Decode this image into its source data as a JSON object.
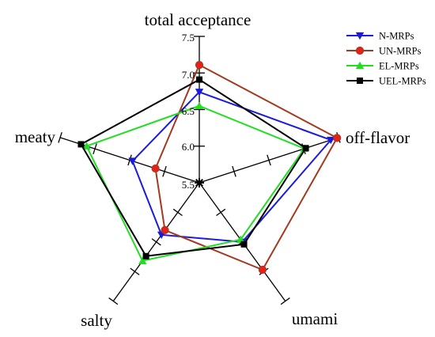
{
  "chart_data": {
    "type": "radar",
    "axes": [
      "total acceptance",
      "off-flavor",
      "umami",
      "salty",
      "meaty"
    ],
    "rlim": [
      5.5,
      7.5
    ],
    "ticks": [
      "5.5",
      "6.0",
      "6.5",
      "7.0",
      "7.5"
    ],
    "tick_values": [
      5.5,
      6.0,
      6.5,
      7.0,
      7.5
    ],
    "legend_position": "top-right",
    "series": [
      {
        "name": "N-MRPs",
        "color": "#1a1adf",
        "marker": "triangle-down",
        "values": [
          6.74,
          7.39,
          6.5,
          6.38,
          6.46
        ]
      },
      {
        "name": "UN-MRPs",
        "color": "#a13a1f",
        "marker": "circle",
        "values": [
          7.11,
          7.48,
          6.97,
          6.3,
          6.13
        ]
      },
      {
        "name": "EL-MRPs",
        "color": "#22dd22",
        "marker": "triangle-up",
        "values": [
          6.55,
          7.01,
          6.46,
          6.82,
          7.12
        ]
      },
      {
        "name": "UEL-MRPs",
        "color": "#000000",
        "marker": "square",
        "values": [
          6.91,
          7.03,
          6.54,
          6.74,
          7.2
        ]
      }
    ]
  }
}
